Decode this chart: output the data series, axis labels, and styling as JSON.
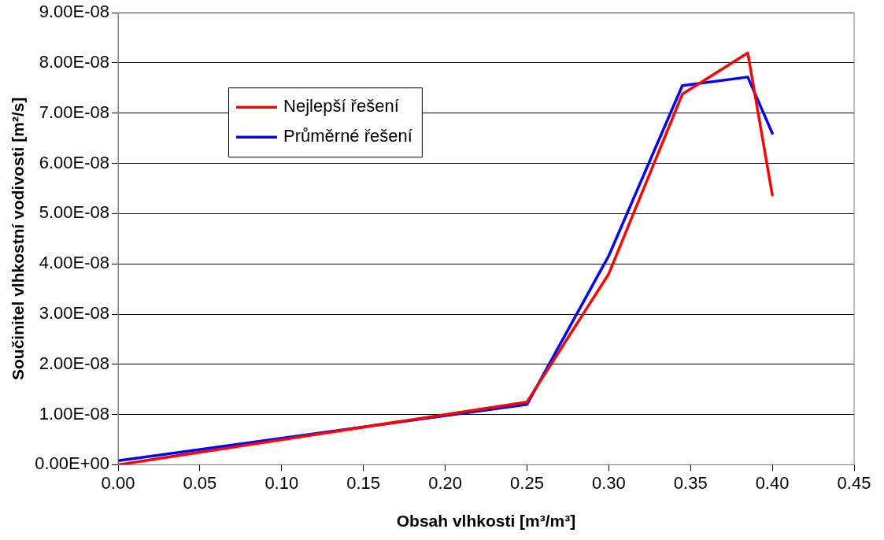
{
  "chart_data": {
    "type": "line",
    "xlabel": "Obsah vlhkosti [m³/m³]",
    "ylabel": "Součinitel vlhkostní vodivosti [m²/s]",
    "x": [
      0,
      0.25,
      0.3,
      0.345,
      0.385,
      0.4
    ],
    "series": [
      {
        "name": "Nejlepší řešení",
        "color": "#ff0000",
        "values": [
          0,
          1.25e-08,
          3.8e-08,
          7.38e-08,
          8.2e-08,
          5.37e-08
        ]
      },
      {
        "name": "Průměrné řešení",
        "color": "#0000ff",
        "values": [
          8e-10,
          1.2e-08,
          4.16e-08,
          7.55e-08,
          7.72e-08,
          6.6e-08
        ]
      }
    ],
    "xlim": [
      0,
      0.45
    ],
    "xticks": [
      {
        "value": 0,
        "label": "0.00"
      },
      {
        "value": 0.05,
        "label": "0.05"
      },
      {
        "value": 0.1,
        "label": "0.10"
      },
      {
        "value": 0.15,
        "label": "0.15"
      },
      {
        "value": 0.2,
        "label": "0.20"
      },
      {
        "value": 0.25,
        "label": "0.25"
      },
      {
        "value": 0.3,
        "label": "0.30"
      },
      {
        "value": 0.35,
        "label": "0.35"
      },
      {
        "value": 0.4,
        "label": "0.40"
      },
      {
        "value": 0.45,
        "label": "0.45"
      }
    ],
    "ylim": [
      0,
      9e-08
    ],
    "yticks": [
      {
        "value": 0,
        "label": "0.00E+00"
      },
      {
        "value": 1e-08,
        "label": "1.00E-08"
      },
      {
        "value": 2e-08,
        "label": "2.00E-08"
      },
      {
        "value": 3e-08,
        "label": "3.00E-08"
      },
      {
        "value": 4e-08,
        "label": "4.00E-08"
      },
      {
        "value": 5e-08,
        "label": "5.00E-08"
      },
      {
        "value": 6e-08,
        "label": "6.00E-08"
      },
      {
        "value": 7e-08,
        "label": "7.00E-08"
      },
      {
        "value": 8e-08,
        "label": "8.00E-08"
      },
      {
        "value": 9e-08,
        "label": "9.00E-08"
      }
    ],
    "grid": "y",
    "legend": "top left",
    "marker": "none",
    "line_style": "solid"
  }
}
